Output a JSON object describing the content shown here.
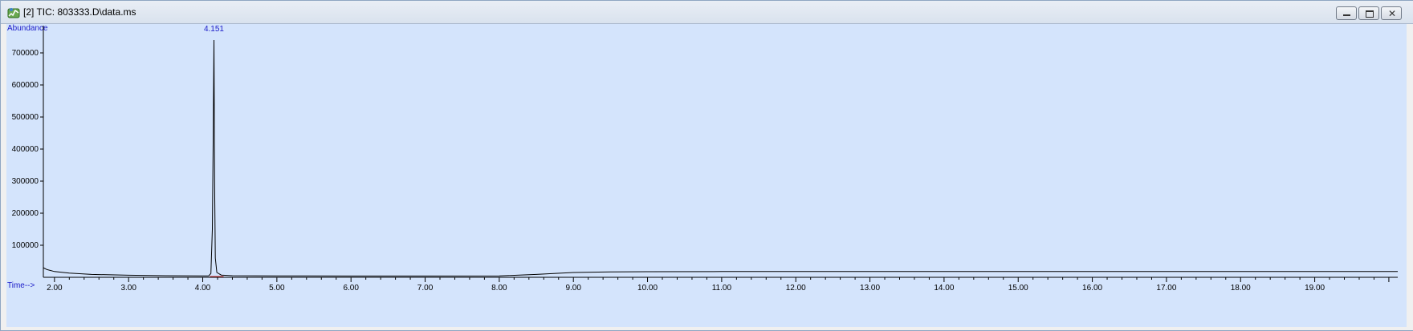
{
  "window": {
    "title": "[2] TIC: 803333.D\\data.ms",
    "icon": "chromatogram-app-icon",
    "controls": [
      "minimize",
      "restore",
      "close"
    ]
  },
  "chart_data": {
    "type": "line",
    "ylabel": "Abundance",
    "xlabel": "Time-->",
    "xlim": [
      1.85,
      20.12
    ],
    "ylim": [
      0,
      760000
    ],
    "x_ticks": [
      "2.00",
      "3.00",
      "4.00",
      "5.00",
      "6.00",
      "7.00",
      "8.00",
      "9.00",
      "10.00",
      "11.00",
      "12.00",
      "13.00",
      "14.00",
      "15.00",
      "16.00",
      "17.00",
      "18.00",
      "19.00"
    ],
    "y_ticks": [
      "100000",
      "200000",
      "300000",
      "400000",
      "500000",
      "600000",
      "700000"
    ],
    "grid": false,
    "annotations": [
      {
        "label": "4.151",
        "x": 4.151
      }
    ],
    "series": [
      {
        "x": [
          1.85,
          1.9,
          2.0,
          2.2,
          2.5,
          3.0,
          3.5,
          4.0,
          4.08,
          4.11,
          4.13,
          4.14,
          4.151,
          4.16,
          4.17,
          4.19,
          4.25,
          4.4,
          5.0,
          6.0,
          7.0,
          8.0,
          8.5,
          9.0,
          9.5,
          10.0,
          11.0,
          12.0,
          13.0,
          14.0,
          15.0,
          16.0,
          17.0,
          18.0,
          19.0,
          20.12
        ],
        "y": [
          30000,
          24000,
          18000,
          13000,
          9000,
          6500,
          5000,
          4500,
          4500,
          12000,
          150000,
          420000,
          740000,
          300000,
          60000,
          15000,
          7000,
          5000,
          4500,
          4000,
          4000,
          4500,
          9000,
          15000,
          17000,
          17500,
          18000,
          18000,
          18000,
          18000,
          18000,
          18000,
          18000,
          18000,
          18000,
          18000
        ]
      }
    ],
    "colors": {
      "line": "#000000",
      "axis_text": "#000000",
      "label_blue": "#1a1ac8",
      "background": "#d4e4fc",
      "baseline_mark": "#d03030"
    }
  }
}
